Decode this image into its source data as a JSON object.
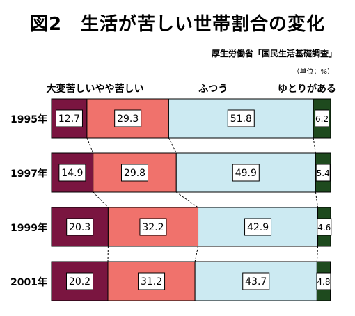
{
  "title": "図2　生活が苦しい世帯割合の変化",
  "source": "厚生労働省「国民生活基礎調査」",
  "unit": "（単位：%）",
  "chart_data": {
    "type": "bar",
    "stacked": true,
    "orientation": "horizontal",
    "percent_total": 100,
    "categories": [
      "1995年",
      "1997年",
      "1999年",
      "2001年"
    ],
    "series": [
      {
        "name": "大変苦しい",
        "values": [
          12.7,
          14.9,
          20.3,
          20.2
        ],
        "color": "#7a1540"
      },
      {
        "name": "やや苦しい",
        "values": [
          29.3,
          29.8,
          32.2,
          31.2
        ],
        "color": "#f0726c"
      },
      {
        "name": "ふつう",
        "values": [
          51.8,
          49.9,
          42.9,
          43.7
        ],
        "color": "#cceaf2"
      },
      {
        "name": "ゆとりがある",
        "values": [
          6.2,
          5.4,
          4.6,
          4.8
        ],
        "color": "#1e4a1e"
      }
    ],
    "legend": "top",
    "grid": false,
    "series_connector_lines": true
  }
}
